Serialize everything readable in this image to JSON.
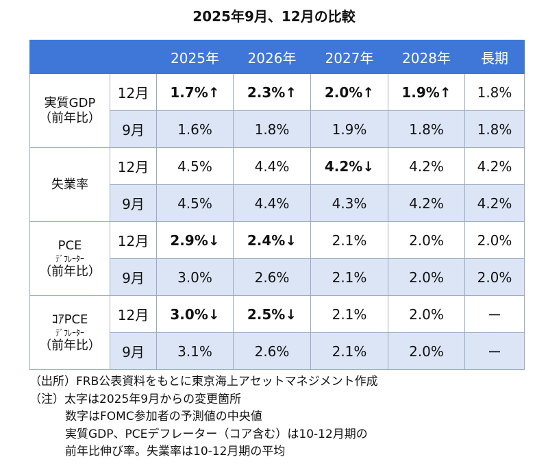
{
  "title": "2025年9月、12月の比較",
  "table": {
    "header": [
      "2025年",
      "2026年",
      "2027年",
      "2028年",
      "長期"
    ],
    "groups": [
      {
        "label": [
          "実質GDP",
          "（前年比）"
        ],
        "rows": [
          {
            "month": "12月",
            "cells": [
              {
                "text": "1.7%↑",
                "bold": true
              },
              {
                "text": "2.3%↑",
                "bold": true
              },
              {
                "text": "2.0%↑",
                "bold": true
              },
              {
                "text": "1.9%↑",
                "bold": true
              },
              {
                "text": "1.8%"
              }
            ]
          },
          {
            "month": "9月",
            "cells": [
              {
                "text": "1.6%"
              },
              {
                "text": "1.8%"
              },
              {
                "text": "1.9%"
              },
              {
                "text": "1.8%"
              },
              {
                "text": "1.8%"
              }
            ]
          }
        ]
      },
      {
        "label": [
          "失業率"
        ],
        "rows": [
          {
            "month": "12月",
            "cells": [
              {
                "text": "4.5%"
              },
              {
                "text": "4.4%"
              },
              {
                "text": "4.2%↓",
                "bold": true
              },
              {
                "text": "4.2%"
              },
              {
                "text": "4.2%"
              }
            ]
          },
          {
            "month": "9月",
            "cells": [
              {
                "text": "4.5%"
              },
              {
                "text": "4.4%"
              },
              {
                "text": "4.3%"
              },
              {
                "text": "4.2%"
              },
              {
                "text": "4.2%"
              }
            ]
          }
        ]
      },
      {
        "label": [
          "PCE",
          "ﾃﾞﾌﾚｰﾀｰ",
          "（前年比）"
        ],
        "rows": [
          {
            "month": "12月",
            "cells": [
              {
                "text": "2.9%↓",
                "bold": true
              },
              {
                "text": "2.4%↓",
                "bold": true
              },
              {
                "text": "2.1%"
              },
              {
                "text": "2.0%"
              },
              {
                "text": "2.0%"
              }
            ]
          },
          {
            "month": "9月",
            "cells": [
              {
                "text": "3.0%"
              },
              {
                "text": "2.6%"
              },
              {
                "text": "2.1%"
              },
              {
                "text": "2.0%"
              },
              {
                "text": "2.0%"
              }
            ]
          }
        ]
      },
      {
        "label": [
          "ｺｱPCE",
          "ﾃﾞﾌﾚｰﾀｰ",
          "（前年比）"
        ],
        "rows": [
          {
            "month": "12月",
            "cells": [
              {
                "text": "3.0%↓",
                "bold": true
              },
              {
                "text": "2.5%↓",
                "bold": true
              },
              {
                "text": "2.1%"
              },
              {
                "text": "2.0%"
              },
              {
                "text": "ー"
              }
            ]
          },
          {
            "month": "9月",
            "cells": [
              {
                "text": "3.1%"
              },
              {
                "text": "2.6%"
              },
              {
                "text": "2.1%"
              },
              {
                "text": "2.0%"
              },
              {
                "text": "ー"
              }
            ]
          }
        ]
      }
    ]
  },
  "notes": [
    "（出所）FRB公表資料をもとに東京海上アセットマネジメント作成",
    "（注）太字は2025年9月からの変更箇所",
    "数字はFOMC参加者の予測値の中央値",
    "実質GDP、PCEデフレーター（コア含む）は10-12月期の",
    "前年比伸び率。失業率は10-12月期の平均"
  ]
}
